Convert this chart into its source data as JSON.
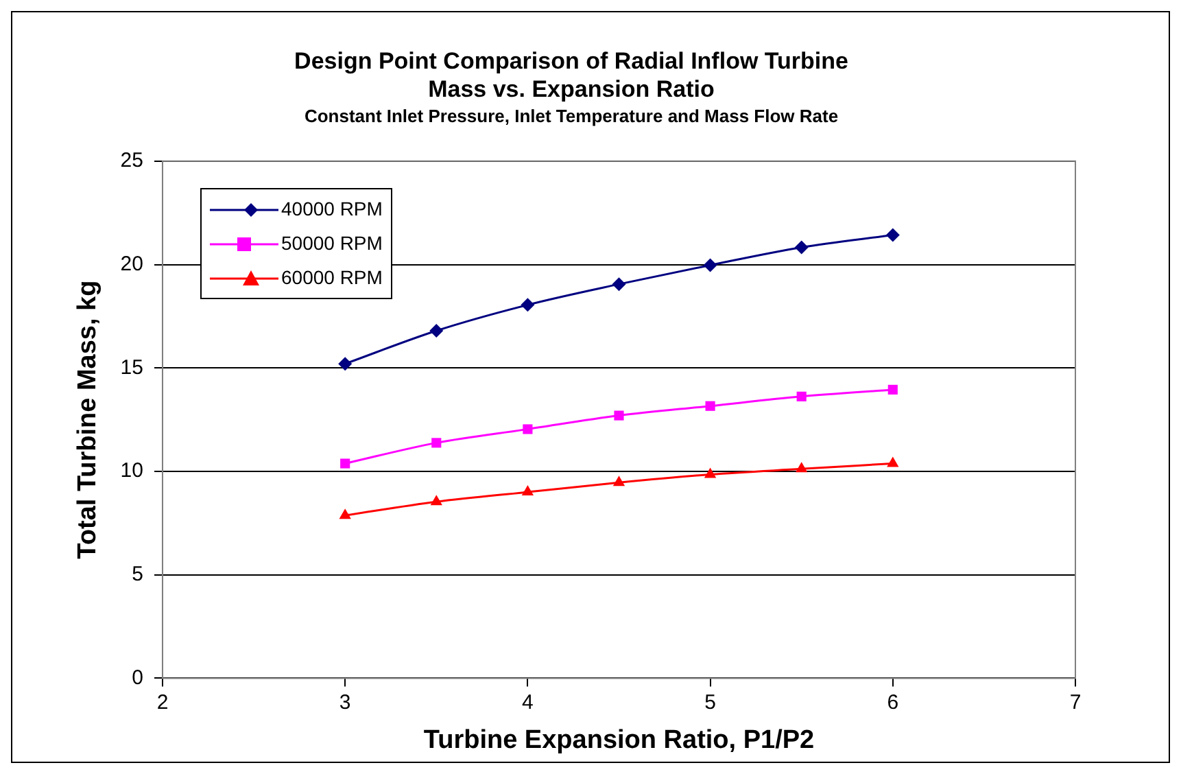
{
  "chart_data": {
    "type": "line",
    "title": "Design Point Comparison of Radial Inflow Turbine\nMass vs. Expansion Ratio",
    "subtitle": "Constant Inlet Pressure, Inlet Temperature and Mass Flow Rate",
    "xlabel": "Turbine Expansion Ratio, P1/P2",
    "ylabel": "Total Turbine Mass, kg",
    "x": [
      3,
      3.5,
      4,
      4.5,
      5,
      5.5,
      6
    ],
    "series": [
      {
        "name": "40000 RPM",
        "color": "#000080",
        "marker": "diamond",
        "values": [
          15.2,
          16.8,
          18.05,
          19.05,
          19.97,
          20.83,
          21.43
        ]
      },
      {
        "name": "50000 RPM",
        "color": "#ff00ff",
        "marker": "square",
        "values": [
          10.38,
          11.38,
          12.04,
          12.7,
          13.16,
          13.62,
          13.95
        ]
      },
      {
        "name": "60000 RPM",
        "color": "#ff0000",
        "marker": "triangle",
        "values": [
          7.87,
          8.53,
          9.0,
          9.46,
          9.85,
          10.12,
          10.38
        ]
      }
    ],
    "xlim": [
      2,
      7
    ],
    "xticks": [
      2,
      3,
      4,
      5,
      6,
      7
    ],
    "ylim": [
      0,
      25
    ],
    "yticks": [
      0,
      5,
      10,
      15,
      20,
      25
    ],
    "grid": "y",
    "legend": "top left",
    "line_style": "solid"
  }
}
